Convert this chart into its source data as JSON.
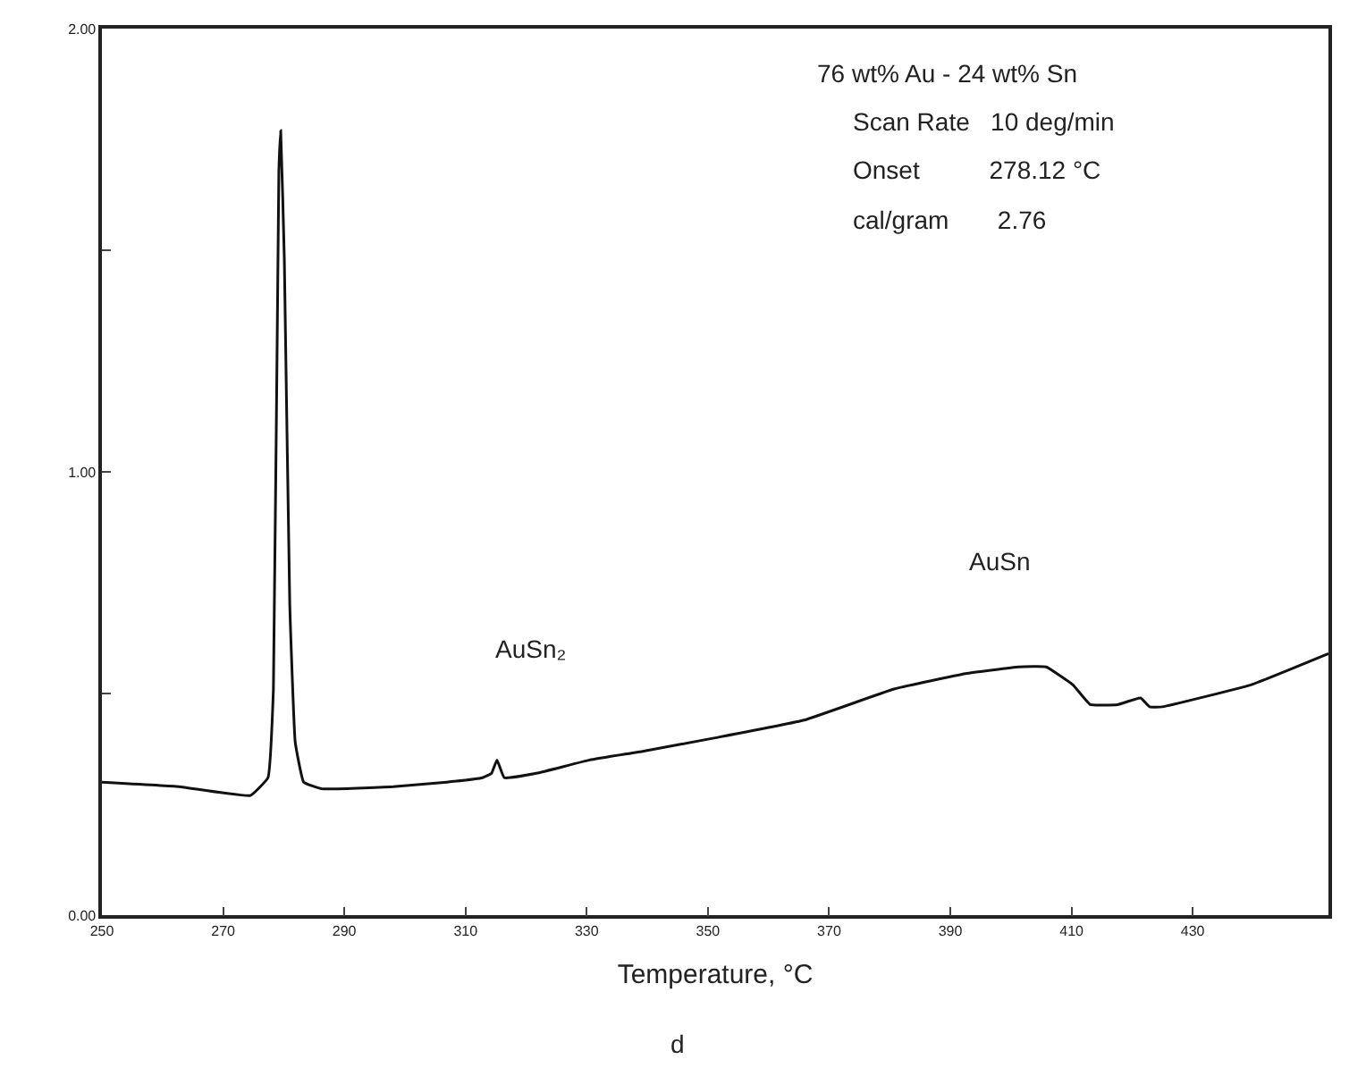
{
  "chart_data": {
    "type": "line",
    "xlabel": "Temperature, °C",
    "x": [
      250,
      262.7,
      274.5,
      277.4,
      278.3,
      279.2,
      279.5,
      280.1,
      281.0,
      281.9,
      283.3,
      286.3,
      298.1,
      306.9,
      312.8,
      314.3,
      315.2,
      316.4,
      321.7,
      330.5,
      339.4,
      351.2,
      365.9,
      380.7,
      392.5,
      401.3,
      405.8,
      410.2,
      413.1,
      417.6,
      421.4,
      422.9,
      425,
      439.7,
      452.4
    ],
    "series": [
      {
        "color": "#111111",
        "values": [
          0.3,
          0.29,
          0.27,
          0.31,
          0.51,
          1.68,
          1.77,
          1.48,
          0.7,
          0.39,
          0.3,
          0.285,
          0.29,
          0.3,
          0.31,
          0.32,
          0.35,
          0.31,
          0.32,
          0.35,
          0.37,
          0.4,
          0.44,
          0.51,
          0.545,
          0.56,
          0.56,
          0.52,
          0.475,
          0.475,
          0.49,
          0.47,
          0.47,
          0.52,
          0.59
        ]
      }
    ],
    "xlim": [
      250,
      452.4
    ],
    "ylim": [
      0,
      2
    ],
    "xticks": [
      250,
      270,
      290,
      310,
      330,
      350,
      370,
      390,
      410,
      430
    ],
    "yticks": [
      {
        "value": 0,
        "label": "0.00"
      },
      {
        "value": 0.5,
        "label": null
      },
      {
        "value": 1,
        "label": "1.00"
      },
      {
        "value": 1.5,
        "label": null
      },
      {
        "value": 2,
        "label": "2.00"
      }
    ],
    "annotations": [
      "AuSn₂",
      "AuSn",
      "76 wt% Au - 24 wt% Sn",
      "Scan Rate   10 deg/min",
      "Onset          278.12 °C",
      "cal/gram       2.76",
      "d"
    ]
  }
}
